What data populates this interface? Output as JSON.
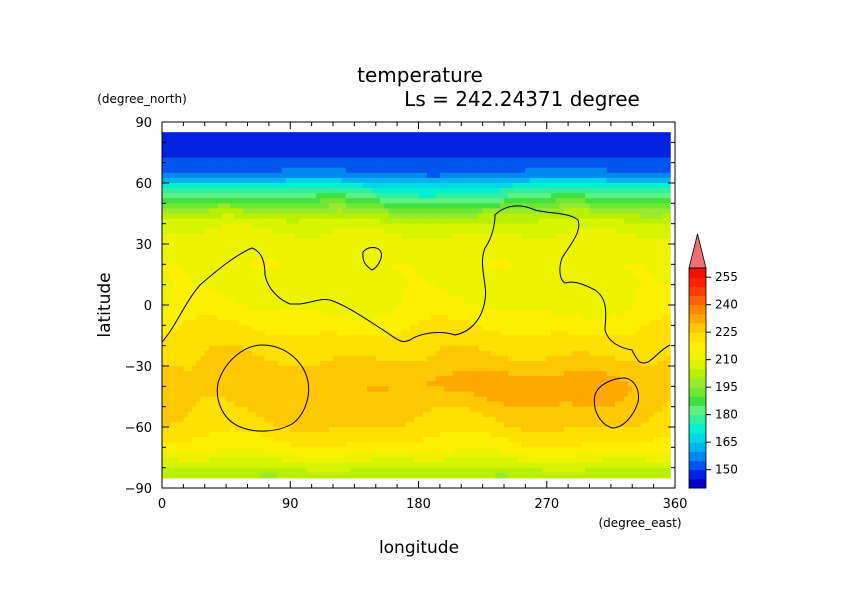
{
  "chart_data": {
    "type": "heatmap",
    "title": "temperature",
    "subtitle": "Ls = 242.24371 degree",
    "xlabel": "longitude",
    "ylabel": "latitude",
    "x_units": "(degree_east)",
    "y_units": "(degree_north)",
    "xlim": [
      0,
      360
    ],
    "ylim": [
      -90,
      90
    ],
    "x_ticks": [
      "0",
      "90",
      "180",
      "270",
      "360"
    ],
    "y_ticks": [
      "90",
      "60",
      "30",
      "0",
      "−30",
      "−60",
      "−90"
    ],
    "colorbar_ticks": [
      "255",
      "240",
      "225",
      "210",
      "195",
      "180",
      "165",
      "150"
    ],
    "colorbar_levels": [
      140,
      145,
      150,
      155,
      160,
      165,
      170,
      175,
      180,
      185,
      190,
      195,
      200,
      205,
      210,
      215,
      220,
      225,
      230,
      235,
      240,
      245,
      250,
      255,
      260
    ],
    "colorbar_colors": [
      "#0000cd",
      "#0022e0",
      "#0055ee",
      "#0088f0",
      "#00b4ee",
      "#00d8e8",
      "#00f0d0",
      "#30f0a0",
      "#60f080",
      "#40e040",
      "#70e830",
      "#98ea30",
      "#b8f000",
      "#d8f500",
      "#eef400",
      "#fff000",
      "#ffe000",
      "#ffc800",
      "#ffa800",
      "#ff8800",
      "#ff6000",
      "#ff3c00",
      "#ff2000",
      "#ee1000"
    ],
    "overflow_color": "#f07070",
    "latitudes": [
      85,
      75,
      65,
      60,
      55,
      50,
      45,
      40,
      35,
      30,
      20,
      10,
      0,
      -10,
      -20,
      -30,
      -40,
      -50,
      -60,
      -70,
      -75,
      -80,
      -85
    ],
    "temperature_profile": [
      145,
      148,
      156,
      168,
      180,
      190,
      200,
      207,
      210,
      212,
      214,
      213,
      214,
      219,
      223,
      226,
      228,
      227,
      224,
      218,
      212,
      205,
      200
    ],
    "grid": false,
    "legend_position": "right"
  }
}
